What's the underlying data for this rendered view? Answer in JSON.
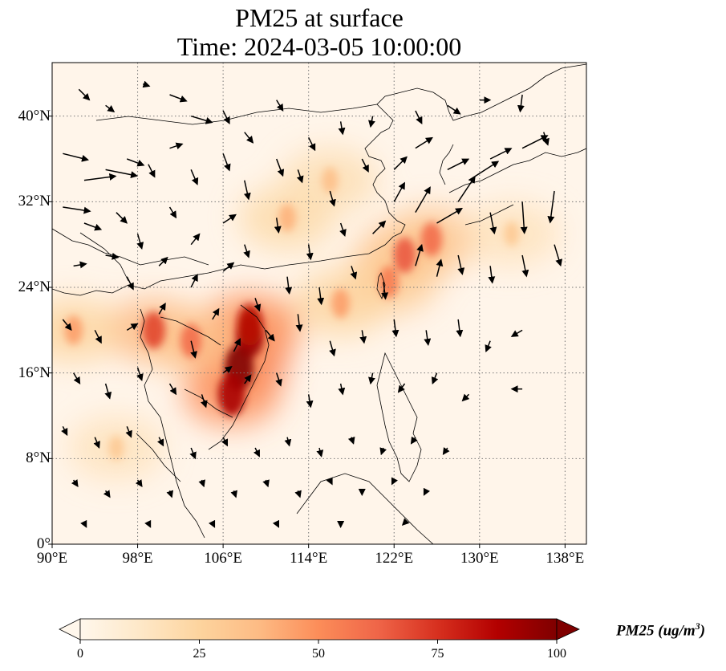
{
  "title": {
    "line1": "PM25 at surface",
    "line2": "Time: 2024-03-05 10:00:00"
  },
  "map": {
    "lon_range": [
      90,
      140
    ],
    "lat_range": [
      0,
      45
    ],
    "lon_ticks": [
      "90°E",
      "98°E",
      "106°E",
      "114°E",
      "122°E",
      "130°E",
      "138°E"
    ],
    "lat_ticks": [
      "0°",
      "8°N",
      "16°N",
      "24°N",
      "32°N",
      "40°N"
    ],
    "lon_tick_values": [
      90,
      98,
      106,
      114,
      122,
      130,
      138
    ],
    "lat_tick_values": [
      0,
      8,
      16,
      24,
      32,
      40
    ],
    "gridlines": "dotted",
    "field": "PM25 concentration near surface",
    "hotspots": [
      {
        "lon": 107.5,
        "lat": 16.5,
        "value": 100
      },
      {
        "lon": 108.5,
        "lat": 19.5,
        "value": 95
      },
      {
        "lon": 106.8,
        "lat": 14.0,
        "value": 90
      },
      {
        "lon": 108.5,
        "lat": 20.5,
        "value": 85
      },
      {
        "lon": 99.5,
        "lat": 20.0,
        "value": 70
      },
      {
        "lon": 103.0,
        "lat": 19.0,
        "value": 60
      },
      {
        "lon": 123.0,
        "lat": 27.0,
        "value": 65
      },
      {
        "lon": 125.5,
        "lat": 28.5,
        "value": 60
      },
      {
        "lon": 121.5,
        "lat": 24.5,
        "value": 55
      },
      {
        "lon": 117.0,
        "lat": 22.5,
        "value": 45
      },
      {
        "lon": 112.0,
        "lat": 30.5,
        "value": 40
      },
      {
        "lon": 116.0,
        "lat": 34.0,
        "value": 35
      },
      {
        "lon": 92.0,
        "lat": 20.0,
        "value": 45
      },
      {
        "lon": 96.0,
        "lat": 9.0,
        "value": 30
      },
      {
        "lon": 133.0,
        "lat": 29.0,
        "value": 30
      }
    ],
    "wind_vectors": [
      [
        92.5,
        42.5,
        0.5,
        -0.5
      ],
      [
        95,
        41,
        0.4,
        -0.3
      ],
      [
        98.5,
        43,
        0.3,
        -0.1
      ],
      [
        101,
        42,
        0.8,
        -0.3
      ],
      [
        103,
        40,
        1.0,
        -0.3
      ],
      [
        106,
        40.5,
        0.3,
        -0.6
      ],
      [
        108,
        38.5,
        0.4,
        -0.5
      ],
      [
        111,
        41.5,
        0.3,
        -0.5
      ],
      [
        114,
        38,
        0.3,
        -0.6
      ],
      [
        117,
        39.5,
        0.1,
        -0.6
      ],
      [
        120,
        40,
        -0.1,
        -0.5
      ],
      [
        124,
        40.5,
        0.3,
        -0.6
      ],
      [
        127,
        41,
        0.6,
        -0.4
      ],
      [
        130,
        41.5,
        0.5,
        0
      ],
      [
        134,
        42,
        -0.1,
        -0.8
      ],
      [
        136,
        38.5,
        0.2,
        -0.6
      ],
      [
        91,
        36.5,
        1.2,
        -0.3
      ],
      [
        93,
        34,
        1.5,
        0.2
      ],
      [
        95,
        35,
        1.5,
        -0.3
      ],
      [
        97,
        36,
        0.8,
        -0.3
      ],
      [
        99,
        35.5,
        0.3,
        -0.6
      ],
      [
        101,
        37,
        0.6,
        0.2
      ],
      [
        103,
        35,
        0.3,
        -0.7
      ],
      [
        106,
        36.5,
        0.3,
        -0.8
      ],
      [
        108,
        34,
        0.2,
        -0.9
      ],
      [
        111,
        36,
        0.3,
        -0.8
      ],
      [
        113,
        35,
        0.2,
        -0.6
      ],
      [
        116,
        33,
        0.2,
        -0.7
      ],
      [
        119,
        36,
        0.3,
        -0.6
      ],
      [
        122,
        35,
        0.6,
        0.6
      ],
      [
        124,
        37,
        0.8,
        0.5
      ],
      [
        127,
        35,
        1.0,
        0.5
      ],
      [
        129,
        34,
        1.4,
        0.9
      ],
      [
        131,
        36,
        1.0,
        0.5
      ],
      [
        134,
        37,
        1.2,
        0.6
      ],
      [
        91,
        31.5,
        1.3,
        -0.2
      ],
      [
        93,
        30,
        0.8,
        -0.3
      ],
      [
        96,
        31,
        0.5,
        -0.5
      ],
      [
        98,
        29,
        0.2,
        -0.7
      ],
      [
        101,
        31.5,
        0.3,
        -0.5
      ],
      [
        103,
        28,
        0.4,
        0.5
      ],
      [
        106,
        30,
        0.6,
        0.4
      ],
      [
        108,
        28,
        0.2,
        -0.6
      ],
      [
        111,
        30.5,
        0.1,
        -0.7
      ],
      [
        114,
        28,
        0.1,
        -0.7
      ],
      [
        117,
        30,
        0.2,
        -0.6
      ],
      [
        120,
        29,
        0.6,
        0.6
      ],
      [
        122,
        32,
        0.5,
        0.9
      ],
      [
        124,
        31,
        0.7,
        1.2
      ],
      [
        126,
        30,
        1.2,
        0.7
      ],
      [
        128,
        32,
        0.8,
        1.2
      ],
      [
        131,
        31,
        0.2,
        -1.0
      ],
      [
        134,
        32,
        0.1,
        -1.5
      ],
      [
        137,
        33,
        -0.2,
        -1.5
      ],
      [
        92,
        26,
        0.6,
        0.1
      ],
      [
        95,
        27,
        0.6,
        -0.1
      ],
      [
        97,
        25,
        0.3,
        -0.6
      ],
      [
        100,
        26,
        0.4,
        0.4
      ],
      [
        103,
        24,
        0.3,
        0.6
      ],
      [
        106,
        25.5,
        0.5,
        0.4
      ],
      [
        109,
        23,
        0.2,
        -0.6
      ],
      [
        112,
        25,
        0.1,
        -0.8
      ],
      [
        115,
        24,
        0.1,
        -0.8
      ],
      [
        118,
        26,
        0.2,
        -0.6
      ],
      [
        121,
        24.5,
        0.1,
        -0.8
      ],
      [
        124,
        26,
        0.3,
        1.0
      ],
      [
        126,
        25,
        0.2,
        0.8
      ],
      [
        128,
        27,
        0.2,
        -0.9
      ],
      [
        131,
        26,
        0.1,
        -0.8
      ],
      [
        134,
        27,
        0.2,
        -1.0
      ],
      [
        137,
        28,
        0.3,
        -1.0
      ],
      [
        91,
        21,
        0.4,
        -0.5
      ],
      [
        94,
        20,
        0.3,
        -0.6
      ],
      [
        97,
        20,
        0.5,
        0.3
      ],
      [
        100,
        21.5,
        0.3,
        0.5
      ],
      [
        103,
        19,
        0.2,
        -0.8
      ],
      [
        105,
        21,
        0.3,
        0.5
      ],
      [
        107,
        18,
        0.3,
        0.6
      ],
      [
        110,
        20,
        0.4,
        -0.5
      ],
      [
        113,
        21.5,
        0.1,
        -0.8
      ],
      [
        116,
        19,
        0.2,
        -0.7
      ],
      [
        119,
        20,
        0.1,
        -0.6
      ],
      [
        122,
        21,
        0.1,
        -0.8
      ],
      [
        125,
        20,
        0.1,
        -0.7
      ],
      [
        128,
        21,
        0.1,
        -0.8
      ],
      [
        131,
        19,
        -0.2,
        -0.5
      ],
      [
        134,
        20,
        -0.5,
        -0.3
      ],
      [
        92,
        16,
        0.3,
        -0.5
      ],
      [
        95,
        15,
        0.2,
        -0.7
      ],
      [
        98,
        16.5,
        0.2,
        -0.6
      ],
      [
        101,
        15,
        0.3,
        -0.5
      ],
      [
        104,
        14,
        0.2,
        -0.6
      ],
      [
        106,
        16,
        0.4,
        0.3
      ],
      [
        108,
        15,
        0.3,
        0.4
      ],
      [
        111,
        16,
        0.2,
        -0.6
      ],
      [
        114,
        14,
        0.1,
        -0.6
      ],
      [
        117,
        15,
        0.1,
        -0.5
      ],
      [
        120,
        16,
        -0.1,
        -0.5
      ],
      [
        123,
        15,
        -0.3,
        -0.4
      ],
      [
        126,
        16,
        -0.2,
        -0.5
      ],
      [
        129,
        14,
        -0.3,
        -0.3
      ],
      [
        134,
        14.5,
        -0.5,
        0
      ],
      [
        91,
        11,
        0.2,
        -0.4
      ],
      [
        94,
        10,
        0.2,
        -0.5
      ],
      [
        97,
        11,
        0.2,
        -0.5
      ],
      [
        100,
        10,
        0.2,
        -0.4
      ],
      [
        103,
        9,
        0.2,
        -0.5
      ],
      [
        106,
        10,
        0.2,
        -0.4
      ],
      [
        109,
        9,
        0.2,
        -0.4
      ],
      [
        112,
        10,
        0.1,
        -0.4
      ],
      [
        115,
        9,
        0.1,
        -0.4
      ],
      [
        118,
        10,
        0.1,
        -0.3
      ],
      [
        121,
        9,
        -0.1,
        -0.3
      ],
      [
        124,
        10,
        -0.2,
        -0.3
      ],
      [
        127,
        9,
        -0.2,
        -0.3
      ],
      [
        92,
        6,
        0.2,
        -0.3
      ],
      [
        95,
        5,
        0.2,
        -0.3
      ],
      [
        98,
        6,
        0.2,
        -0.3
      ],
      [
        101,
        5,
        0.1,
        -0.3
      ],
      [
        104,
        6,
        0.1,
        -0.3
      ],
      [
        107,
        5,
        0.1,
        -0.3
      ],
      [
        110,
        6,
        0.1,
        -0.3
      ],
      [
        113,
        5,
        0.1,
        -0.3
      ],
      [
        116,
        6,
        0.1,
        -0.2
      ],
      [
        119,
        5,
        0,
        -0.2
      ],
      [
        122,
        6,
        -0.1,
        -0.2
      ],
      [
        125,
        5,
        -0.1,
        -0.2
      ],
      [
        93,
        2,
        0.1,
        -0.2
      ],
      [
        99,
        2,
        0.1,
        -0.2
      ],
      [
        105,
        2,
        0.1,
        -0.2
      ],
      [
        111,
        2,
        0.1,
        -0.2
      ],
      [
        117,
        2,
        0,
        -0.2
      ],
      [
        123,
        2,
        -0.1,
        -0.1
      ]
    ],
    "colors": {
      "water_bg": "#fff5ea",
      "coastline": "#000000",
      "grid": "#777777"
    }
  },
  "colorbar": {
    "label_main": "PM25 (ug/m",
    "label_sup": "3",
    "label_end": ")",
    "ticks": [
      "0",
      "25",
      "50",
      "75",
      "100"
    ],
    "tick_values": [
      0,
      25,
      50,
      75,
      100
    ],
    "range": [
      0,
      100
    ],
    "extend": "both",
    "colormap": "OrRd",
    "stops": [
      "#fff7ec",
      "#fee8c8",
      "#fdd49e",
      "#fdbb84",
      "#fc8d59",
      "#ef6548",
      "#d7301f",
      "#b30000",
      "#7f0000"
    ]
  }
}
